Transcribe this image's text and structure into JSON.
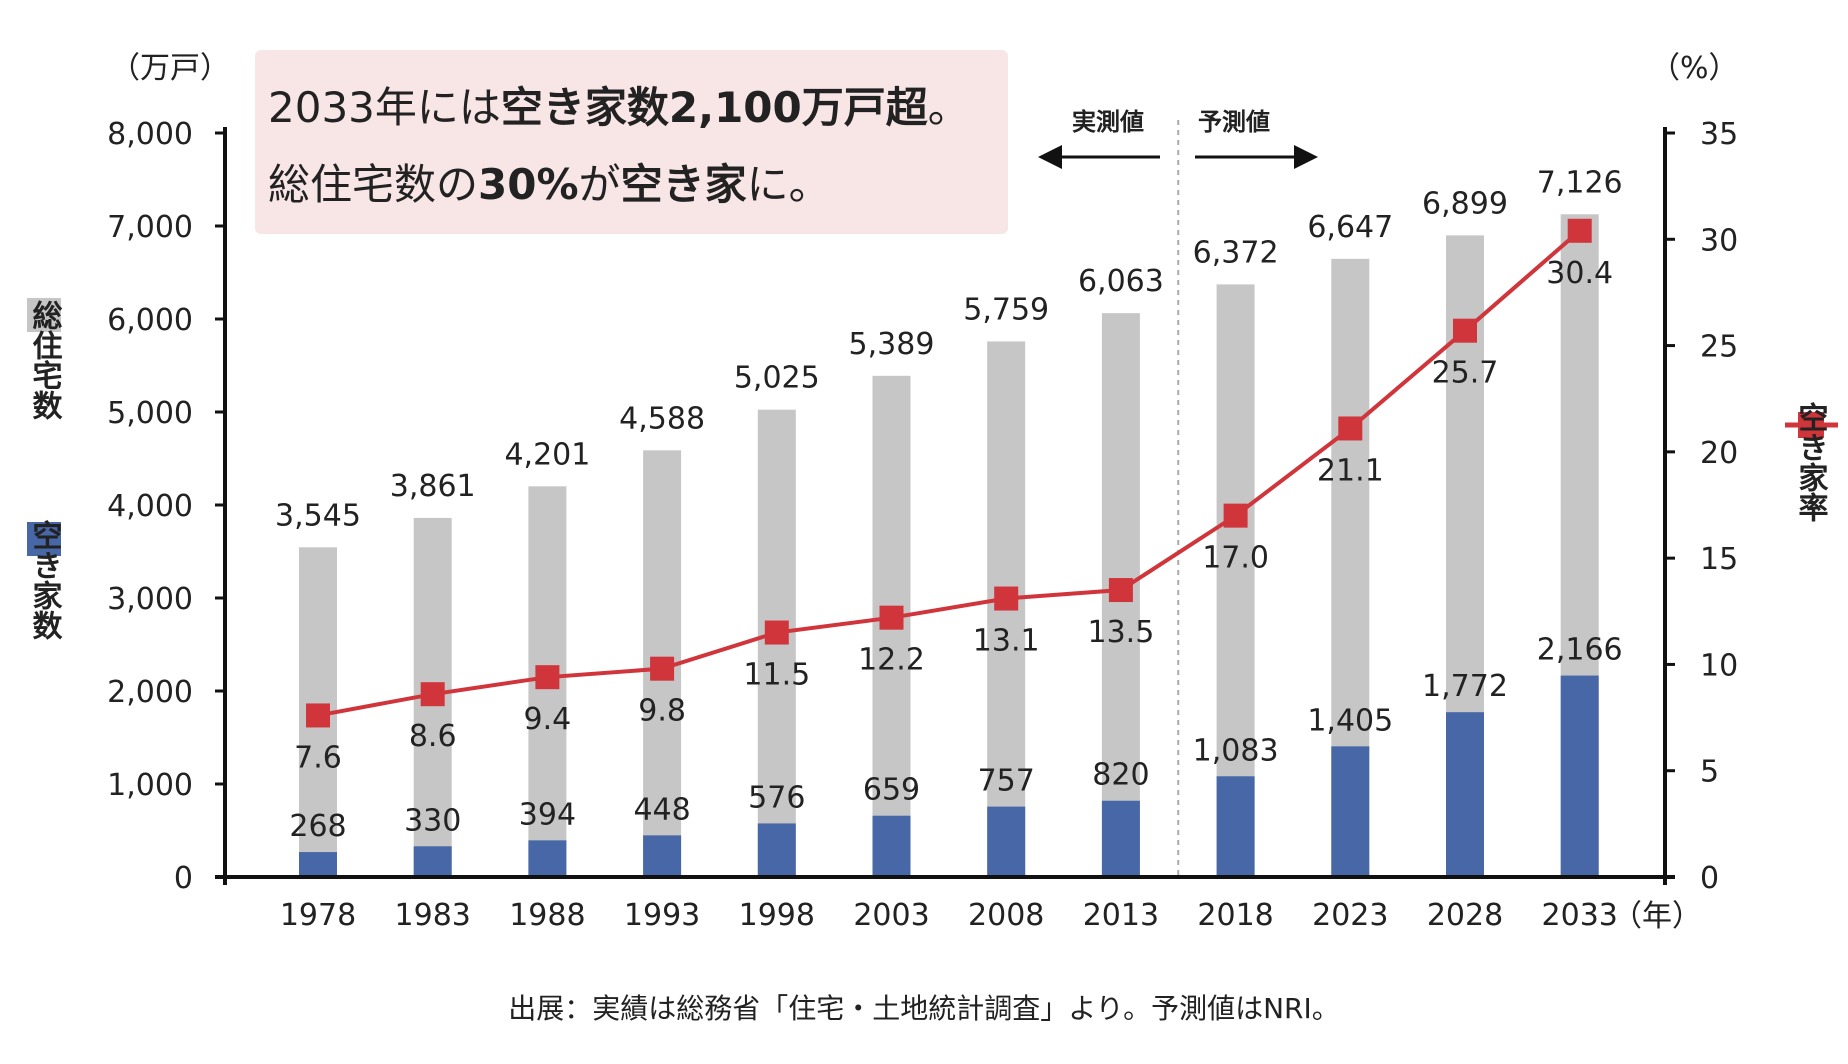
{
  "chart_data": {
    "type": "bar",
    "title": "2033年には空き家数2,100万戸超。",
    "subtitle": "総住宅数の30%が空き家に。",
    "title_parts": {
      "line1_pre": "2033年には",
      "line1_bold": "空き家数2,100万戸超",
      "line1_post": "。",
      "line2_pre": "総住宅数の",
      "line2_bold": "30%",
      "line2_mid": "が",
      "line2_bold2": "空き家",
      "line2_post": "に。"
    },
    "categories": [
      "1978",
      "1983",
      "1988",
      "1993",
      "1998",
      "2003",
      "2008",
      "2013",
      "2018",
      "2023",
      "2028",
      "2033"
    ],
    "series": [
      {
        "name": "総住宅数",
        "kind": "bar",
        "axis": "left",
        "color": "#c6c6c6",
        "values": [
          3545,
          3861,
          4201,
          4588,
          5025,
          5389,
          5759,
          6063,
          6372,
          6647,
          6899,
          7126
        ],
        "labels": [
          "3,545",
          "3,861",
          "4,201",
          "4,588",
          "5,025",
          "5,389",
          "5,759",
          "6,063",
          "6,372",
          "6,647",
          "6,899",
          "7,126"
        ]
      },
      {
        "name": "空き家数",
        "kind": "bar",
        "axis": "left",
        "color": "#4767a7",
        "values": [
          268,
          330,
          394,
          448,
          576,
          659,
          757,
          820,
          1083,
          1405,
          1772,
          2166
        ],
        "labels": [
          "268",
          "330",
          "394",
          "448",
          "576",
          "659",
          "757",
          "820",
          "1,083",
          "1,405",
          "1,772",
          "2,166"
        ]
      },
      {
        "name": "空き家率",
        "kind": "line",
        "axis": "right",
        "color": "#d0353b",
        "values": [
          7.6,
          8.6,
          9.4,
          9.8,
          11.5,
          12.2,
          13.1,
          13.5,
          17.0,
          21.1,
          25.7,
          30.4
        ],
        "labels": [
          "7.6",
          "8.6",
          "9.4",
          "9.8",
          "11.5",
          "12.2",
          "13.1",
          "13.5",
          "17.0",
          "21.1",
          "25.7",
          "30.4"
        ]
      }
    ],
    "y_left": {
      "label": "（万戸）",
      "range": [
        0,
        8000
      ],
      "ticks": [
        "0",
        "1,000",
        "2,000",
        "3,000",
        "4,000",
        "5,000",
        "6,000",
        "7,000",
        "8,000"
      ]
    },
    "y_right": {
      "label": "（%）",
      "range": [
        0,
        35
      ],
      "ticks": [
        "0",
        "5",
        "10",
        "15",
        "20",
        "25",
        "30",
        "35"
      ]
    },
    "x_unit": "（年）",
    "annotations": {
      "actual": "実測値",
      "forecast": "予測値"
    },
    "legend": {
      "placement": "left-and-right",
      "left": [
        "総住宅数",
        "空き家数"
      ],
      "right": [
        "空き家率"
      ]
    },
    "source": "出展：実績は総務省「住宅・土地統計調査」より。予測値はNRI。",
    "grid": false
  }
}
